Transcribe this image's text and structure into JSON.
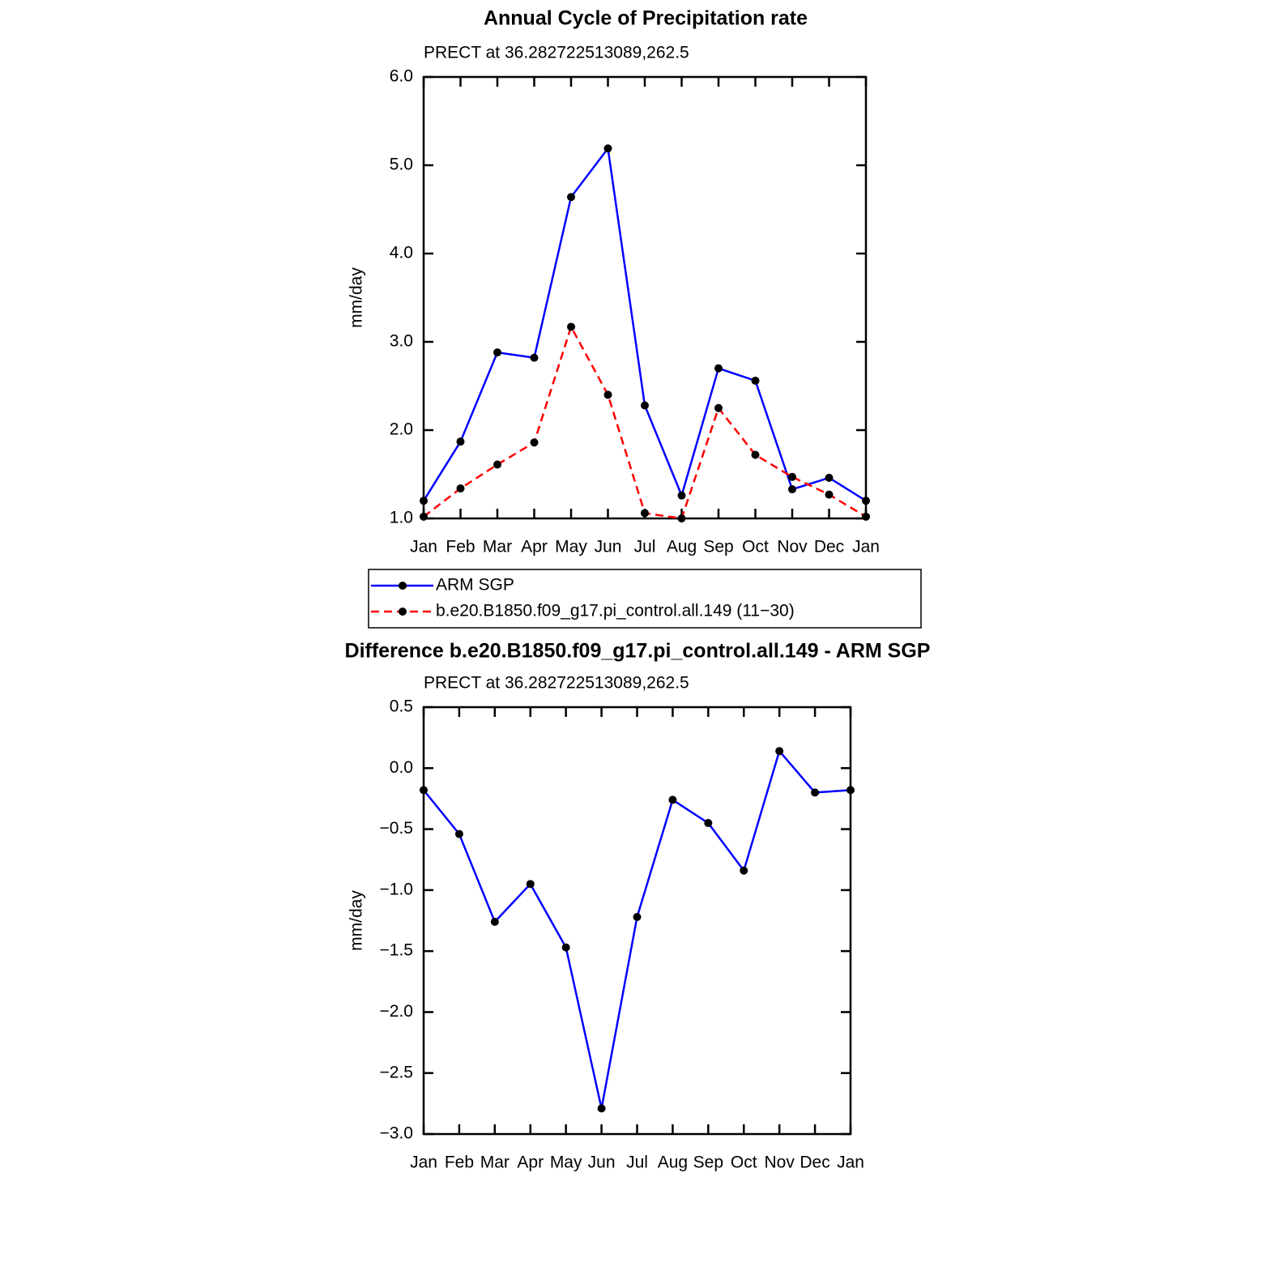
{
  "chart_data": [
    {
      "type": "line",
      "title": "Annual Cycle of Precipitation rate",
      "subtitle": "PRECT at 36.282722513089,262.5",
      "y_label": "mm/day",
      "categories": [
        "Jan",
        "Feb",
        "Mar",
        "Apr",
        "May",
        "Jun",
        "Jul",
        "Aug",
        "Sep",
        "Oct",
        "Nov",
        "Dec",
        "Jan"
      ],
      "series": [
        {
          "name": "ARM SGP",
          "color": "#0000ff",
          "dash": false,
          "values": [
            1.2,
            1.87,
            2.88,
            2.82,
            4.64,
            5.19,
            2.28,
            1.26,
            2.7,
            2.56,
            1.33,
            1.46,
            1.2
          ]
        },
        {
          "name": "b.e20.B1850.f09_g17.pi_control.all.149 (11−30)",
          "color": "#ff0000",
          "dash": true,
          "values": [
            1.02,
            1.34,
            1.61,
            1.86,
            3.17,
            2.4,
            1.06,
            1.0,
            2.25,
            1.72,
            1.47,
            1.27,
            1.02
          ]
        }
      ],
      "ylim": [
        1.0,
        6.0
      ],
      "yticks": [
        {
          "value": 1,
          "label": "1.0"
        },
        {
          "value": 2,
          "label": "2.0"
        },
        {
          "value": 3,
          "label": "3.0"
        },
        {
          "value": 4,
          "label": "4.0"
        },
        {
          "value": 5,
          "label": "5.0"
        },
        {
          "value": 6,
          "label": "6.0"
        }
      ],
      "legend": "below"
    },
    {
      "type": "line",
      "title": "Difference b.e20.B1850.f09_g17.pi_control.all.149 - ARM SGP",
      "subtitle": "PRECT at 36.282722513089,262.5",
      "y_label": "mm/day",
      "categories": [
        "Jan",
        "Feb",
        "Mar",
        "Apr",
        "May",
        "Jun",
        "Jul",
        "Aug",
        "Sep",
        "Oct",
        "Nov",
        "Dec",
        "Jan"
      ],
      "series": [
        {
          "color": "#0000ff",
          "dash": false,
          "values": [
            -0.18,
            -0.54,
            -1.26,
            -0.95,
            -1.47,
            -2.79,
            -1.22,
            -0.26,
            -0.45,
            -0.84,
            0.14,
            -0.2,
            -0.18
          ]
        }
      ],
      "ylim": [
        -3.0,
        0.5
      ],
      "yticks": [
        {
          "value": -3,
          "label": "−3.0"
        },
        {
          "value": -2.5,
          "label": "−2.5"
        },
        {
          "value": -2,
          "label": "−2.0"
        },
        {
          "value": -1.5,
          "label": "−1.5"
        },
        {
          "value": -1,
          "label": "−1.0"
        },
        {
          "value": -0.5,
          "label": "−0.5"
        },
        {
          "value": 0,
          "label": "0.0"
        },
        {
          "value": 0.5,
          "label": "0.5"
        }
      ]
    }
  ]
}
